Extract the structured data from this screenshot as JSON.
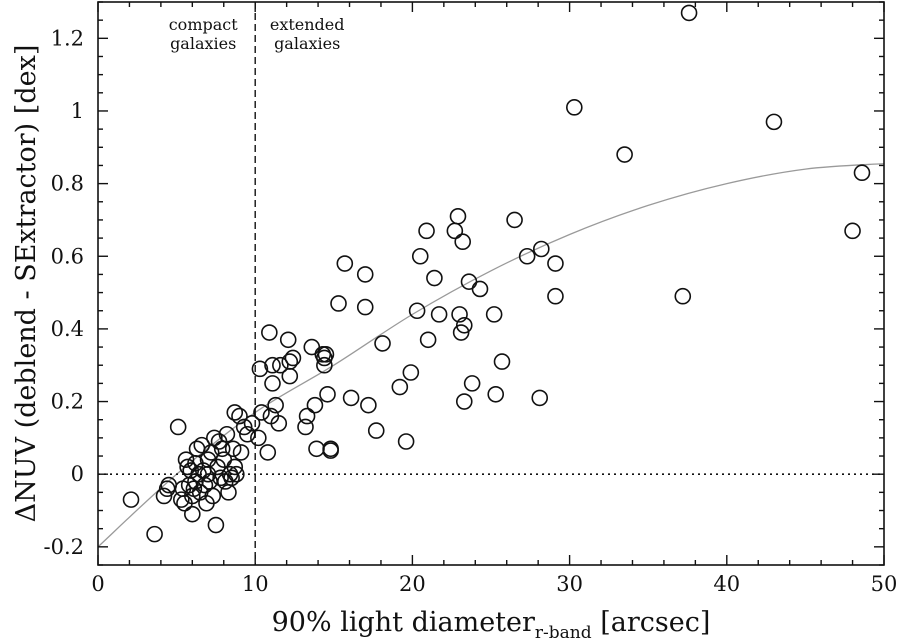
{
  "chart_data": {
    "type": "scatter",
    "title": "",
    "xlabel": "90% light diameter",
    "xlabel_subscript": "r-band",
    "xlabel_unit": "[arcsec]",
    "ylabel": "ΔNUV (deblend - SExtractor) [dex]",
    "xlim": [
      0,
      50
    ],
    "ylim": [
      -0.25,
      1.3
    ],
    "xticks": [
      0,
      10,
      20,
      30,
      40,
      50
    ],
    "yticks": [
      -0.2,
      0,
      0.2,
      0.4,
      0.6,
      0.8,
      1,
      1.2
    ],
    "xtick_labels": [
      "0",
      "10",
      "20",
      "30",
      "40",
      "50"
    ],
    "ytick_labels": [
      "-0.2",
      "0",
      "0.2",
      "0.4",
      "0.6",
      "0.8",
      "1",
      "1.2"
    ],
    "grid": false,
    "annotations": [
      {
        "text": "compact\ngalaxies",
        "position": "left of divider"
      },
      {
        "text": "extended\ngalaxies",
        "position": "right of divider"
      }
    ],
    "divider_x": 10,
    "zero_line_y": 0,
    "trend_curve": [
      [
        0,
        -0.2
      ],
      [
        5,
        0.0
      ],
      [
        10,
        0.17
      ],
      [
        15,
        0.3
      ],
      [
        20,
        0.44
      ],
      [
        25,
        0.56
      ],
      [
        30,
        0.66
      ],
      [
        35,
        0.74
      ],
      [
        40,
        0.8
      ],
      [
        45,
        0.84
      ],
      [
        50,
        0.855
      ]
    ],
    "points": [
      [
        2.1,
        -0.07
      ],
      [
        3.6,
        -0.165
      ],
      [
        4.2,
        -0.06
      ],
      [
        4.4,
        -0.04
      ],
      [
        4.5,
        -0.03
      ],
      [
        5.1,
        0.13
      ],
      [
        5.3,
        -0.07
      ],
      [
        5.4,
        -0.04
      ],
      [
        5.5,
        -0.08
      ],
      [
        5.6,
        0.04
      ],
      [
        5.7,
        0.02
      ],
      [
        5.8,
        -0.03
      ],
      [
        5.9,
        0.01
      ],
      [
        6.0,
        -0.06
      ],
      [
        6.0,
        -0.11
      ],
      [
        6.1,
        -0.04
      ],
      [
        6.2,
        0.03
      ],
      [
        6.2,
        -0.02
      ],
      [
        6.3,
        0.07
      ],
      [
        6.4,
        0.0
      ],
      [
        6.5,
        -0.05
      ],
      [
        6.6,
        0.08
      ],
      [
        6.7,
        0.01
      ],
      [
        6.8,
        -0.03
      ],
      [
        6.9,
        -0.08
      ],
      [
        7.0,
        0.04
      ],
      [
        7.0,
        0.0
      ],
      [
        7.1,
        -0.02
      ],
      [
        7.2,
        0.06
      ],
      [
        7.3,
        -0.06
      ],
      [
        7.4,
        0.1
      ],
      [
        7.5,
        -0.14
      ],
      [
        7.6,
        0.02
      ],
      [
        7.7,
        0.09
      ],
      [
        7.8,
        -0.01
      ],
      [
        7.9,
        0.07
      ],
      [
        8.0,
        0.04
      ],
      [
        8.1,
        -0.02
      ],
      [
        8.2,
        0.11
      ],
      [
        8.3,
        -0.05
      ],
      [
        8.4,
        0.0
      ],
      [
        8.5,
        -0.01
      ],
      [
        8.6,
        0.07
      ],
      [
        8.7,
        0.02
      ],
      [
        8.7,
        0.17
      ],
      [
        8.8,
        0.0
      ],
      [
        9.0,
        0.16
      ],
      [
        9.1,
        0.06
      ],
      [
        9.3,
        0.13
      ],
      [
        9.5,
        0.11
      ],
      [
        9.8,
        0.14
      ],
      [
        10.2,
        0.1
      ],
      [
        10.3,
        0.29
      ],
      [
        10.4,
        0.17
      ],
      [
        10.8,
        0.06
      ],
      [
        10.9,
        0.39
      ],
      [
        11.0,
        0.16
      ],
      [
        11.1,
        0.3
      ],
      [
        11.1,
        0.25
      ],
      [
        11.3,
        0.19
      ],
      [
        11.5,
        0.14
      ],
      [
        11.6,
        0.3
      ],
      [
        12.1,
        0.37
      ],
      [
        12.2,
        0.31
      ],
      [
        12.2,
        0.27
      ],
      [
        12.4,
        0.32
      ],
      [
        13.2,
        0.13
      ],
      [
        13.3,
        0.16
      ],
      [
        13.6,
        0.35
      ],
      [
        13.8,
        0.19
      ],
      [
        13.9,
        0.07
      ],
      [
        14.3,
        0.33
      ],
      [
        14.4,
        0.32
      ],
      [
        14.4,
        0.3
      ],
      [
        14.5,
        0.33
      ],
      [
        14.6,
        0.22
      ],
      [
        14.8,
        0.07
      ],
      [
        14.8,
        0.065
      ],
      [
        15.3,
        0.47
      ],
      [
        15.7,
        0.58
      ],
      [
        16.1,
        0.21
      ],
      [
        17.0,
        0.55
      ],
      [
        17.0,
        0.46
      ],
      [
        17.2,
        0.19
      ],
      [
        17.7,
        0.12
      ],
      [
        18.1,
        0.36
      ],
      [
        19.2,
        0.24
      ],
      [
        19.6,
        0.09
      ],
      [
        19.9,
        0.28
      ],
      [
        20.3,
        0.45
      ],
      [
        20.5,
        0.6
      ],
      [
        20.9,
        0.67
      ],
      [
        21.0,
        0.37
      ],
      [
        21.4,
        0.54
      ],
      [
        21.7,
        0.44
      ],
      [
        22.7,
        0.67
      ],
      [
        22.9,
        0.71
      ],
      [
        23.0,
        0.44
      ],
      [
        23.1,
        0.39
      ],
      [
        23.2,
        0.64
      ],
      [
        23.3,
        0.2
      ],
      [
        23.3,
        0.41
      ],
      [
        23.6,
        0.53
      ],
      [
        23.8,
        0.25
      ],
      [
        24.3,
        0.51
      ],
      [
        25.2,
        0.44
      ],
      [
        25.3,
        0.22
      ],
      [
        25.7,
        0.31
      ],
      [
        26.5,
        0.7
      ],
      [
        27.3,
        0.6
      ],
      [
        28.1,
        0.21
      ],
      [
        28.2,
        0.62
      ],
      [
        29.1,
        0.58
      ],
      [
        29.1,
        0.49
      ],
      [
        30.3,
        1.01
      ],
      [
        33.5,
        0.88
      ],
      [
        37.2,
        0.49
      ],
      [
        37.6,
        1.27
      ],
      [
        43.0,
        0.97
      ],
      [
        48.0,
        0.67
      ],
      [
        48.6,
        0.83
      ]
    ]
  }
}
